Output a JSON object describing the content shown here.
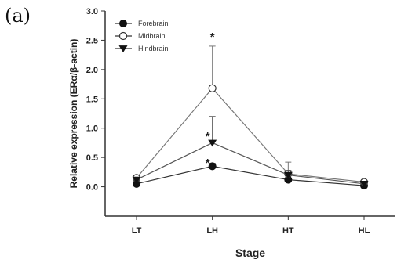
{
  "panel_label": "(a)",
  "chart_data": {
    "type": "line",
    "title": "",
    "xlabel": "Stage",
    "ylabel": "Relative expression (ERα/β-actin)",
    "categories": [
      "LT",
      "LH",
      "HT",
      "HL"
    ],
    "ylim": [
      -0.5,
      3.0
    ],
    "yticks": [
      "0.0",
      "0.5",
      "1.0",
      "1.5",
      "2.0",
      "2.5",
      "3.0"
    ],
    "legend_position": "top-left",
    "grid": false,
    "series": [
      {
        "name": "Forebrain",
        "marker": "filled-circle",
        "values": [
          0.05,
          0.35,
          0.12,
          0.02
        ],
        "errors": [
          0.02,
          0.05,
          0.03,
          0.02
        ]
      },
      {
        "name": "Midbrain",
        "marker": "open-circle",
        "values": [
          0.15,
          1.68,
          0.22,
          0.08
        ],
        "errors": [
          0.03,
          0.72,
          0.2,
          0.03
        ]
      },
      {
        "name": "Hindbrain",
        "marker": "filled-triangle",
        "values": [
          0.12,
          0.75,
          0.2,
          0.05
        ],
        "errors": [
          0.03,
          0.45,
          0.08,
          0.02
        ]
      }
    ],
    "annotations": [
      {
        "text": "*",
        "x": "LH",
        "y": 2.6
      },
      {
        "text": "*",
        "x": "LH",
        "y": 0.9
      },
      {
        "text": "*",
        "x": "LH",
        "y": 0.45
      }
    ]
  }
}
